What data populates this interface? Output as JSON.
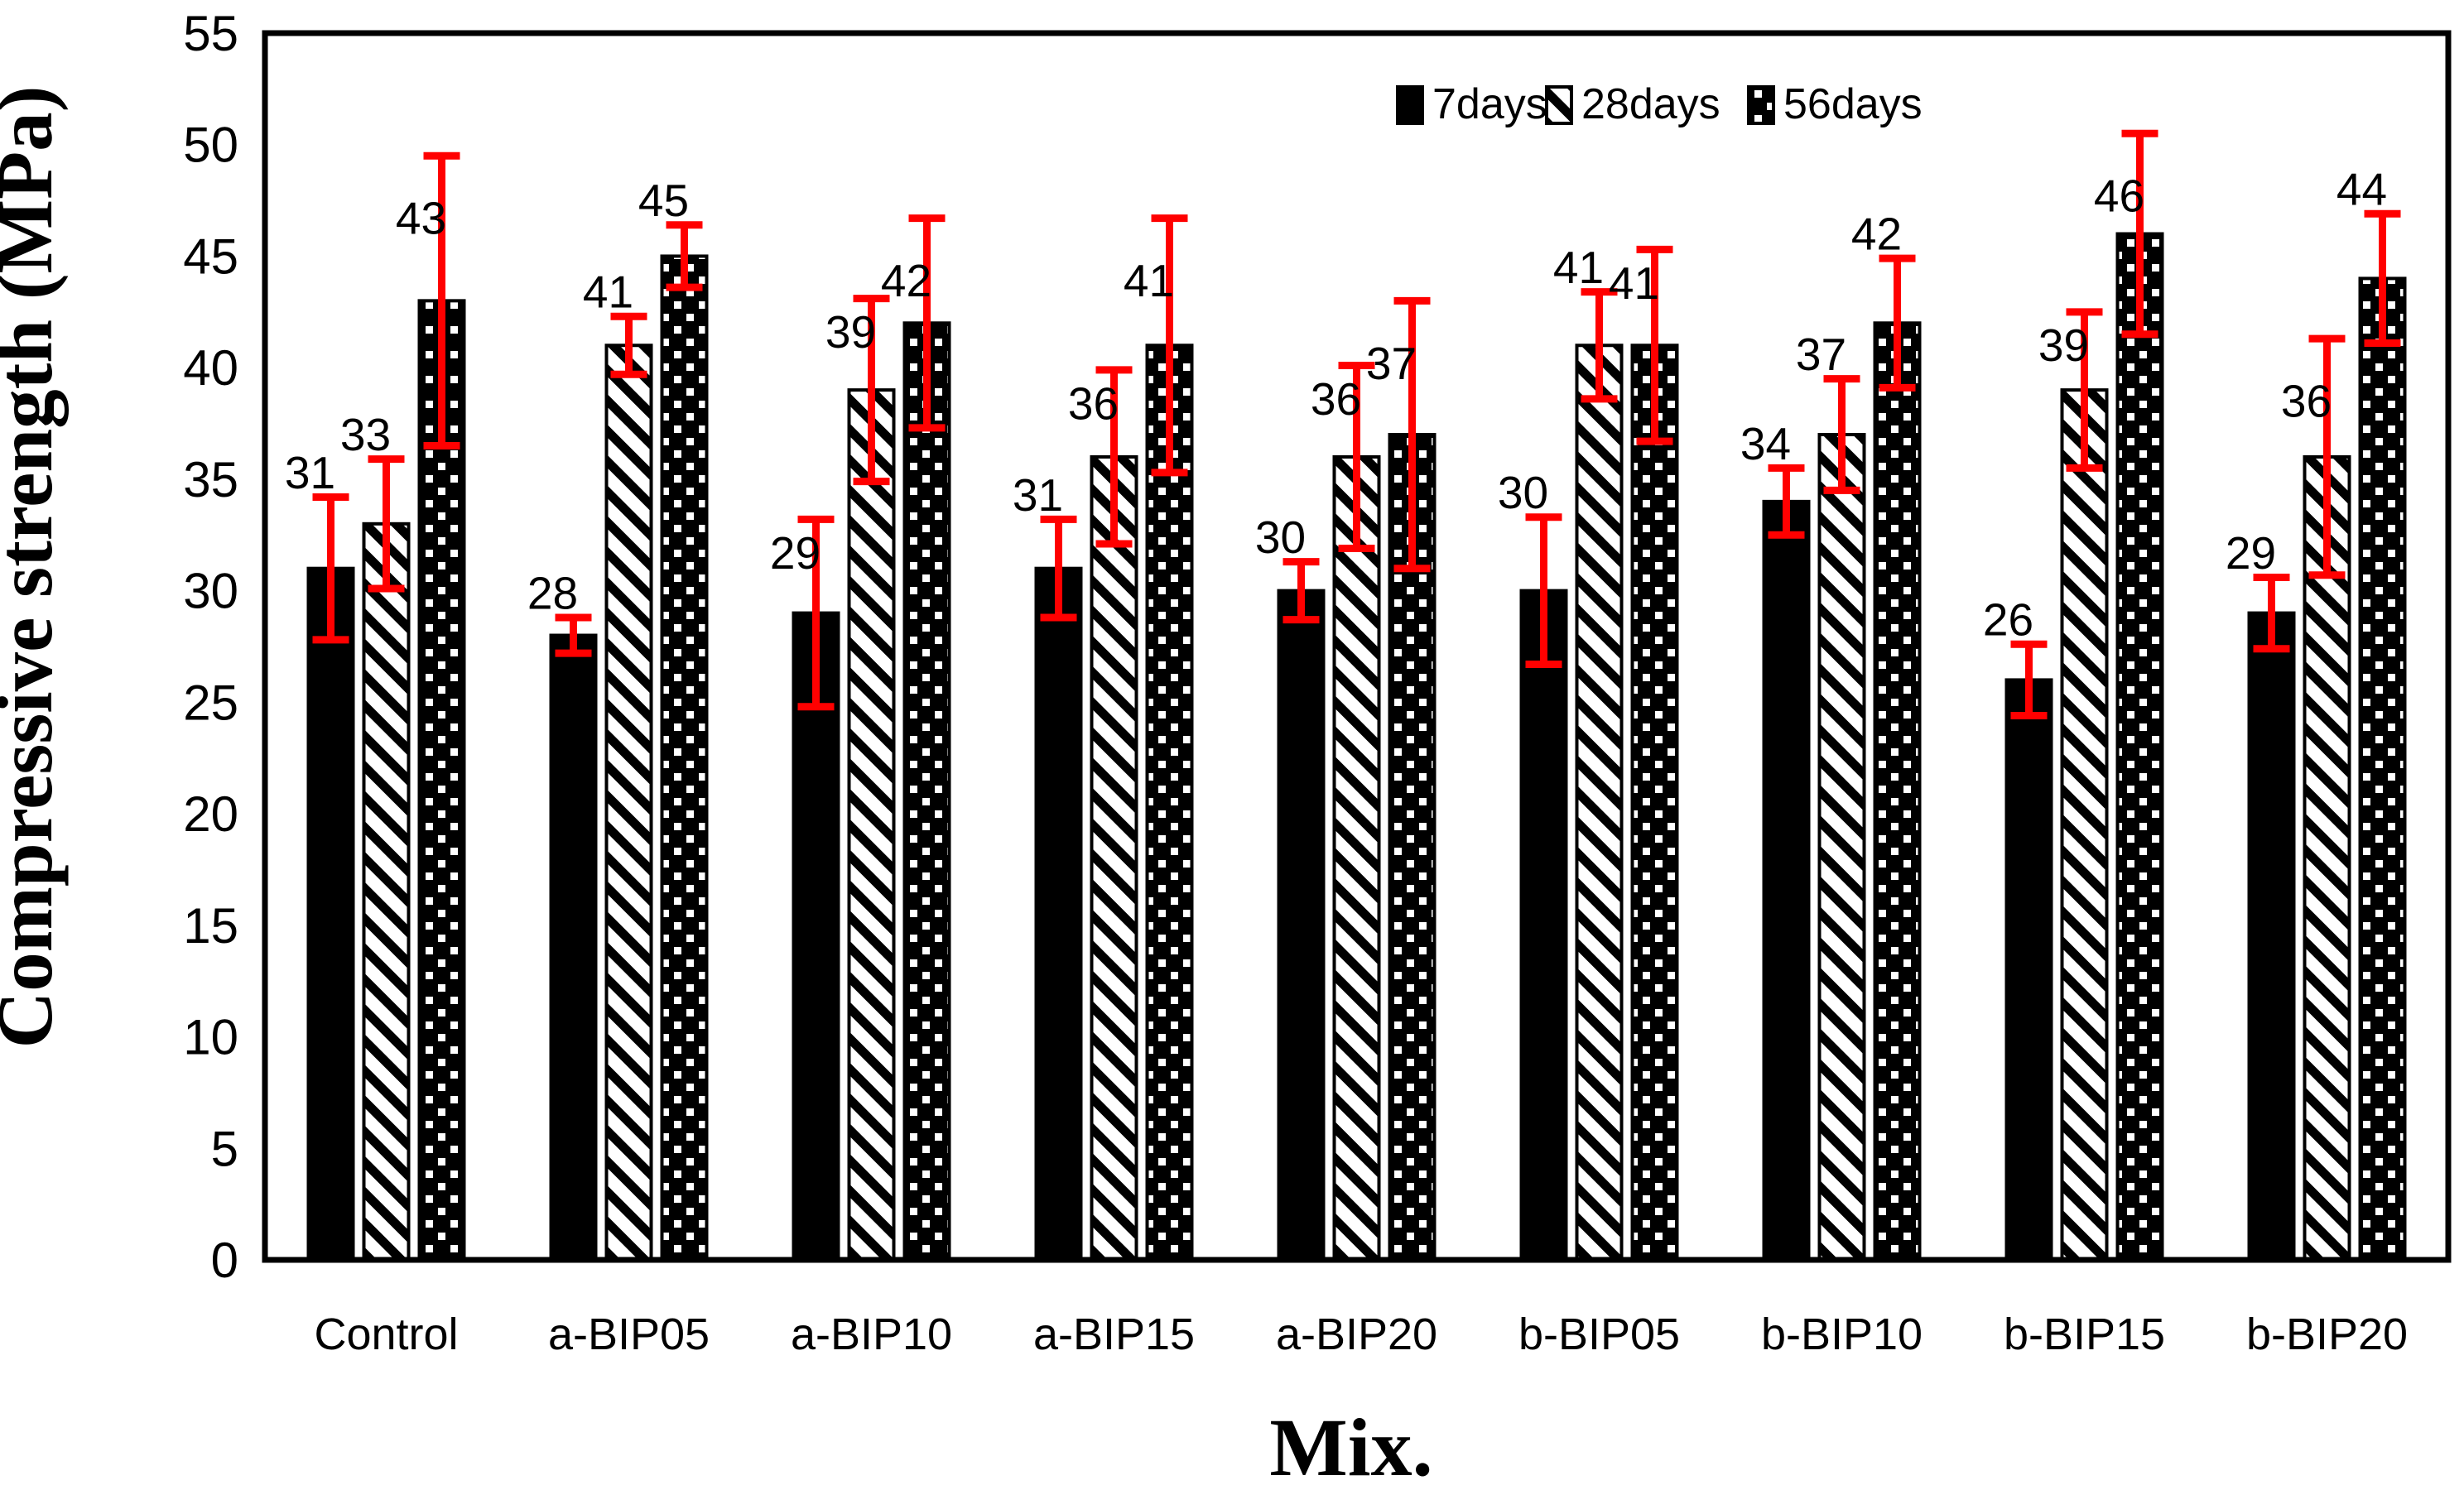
{
  "chart_data": {
    "type": "bar",
    "title": "",
    "xlabel": "Mix.",
    "ylabel": "Compressive strength (MPa)",
    "ylim": [
      0,
      55
    ],
    "yticks": [
      0,
      5,
      10,
      15,
      20,
      25,
      30,
      35,
      40,
      45,
      50,
      55
    ],
    "grid": false,
    "legend_position": "top-right-inside",
    "background": "#FFFFFF",
    "bar_color": "#000000",
    "error_bar_color": "#FF0000",
    "categories": [
      "Control",
      "a-BIP05",
      "a-BIP10",
      "a-BIP15",
      "a-BIP20",
      "b-BIP05",
      "b-BIP10",
      "b-BIP15",
      "b-BIP20"
    ],
    "series": [
      {
        "name": "7days",
        "pattern": "solid-black",
        "values": [
          31,
          28,
          29,
          31,
          30,
          30,
          34,
          26,
          29
        ],
        "err": [
          3.2,
          0.8,
          4.2,
          2.2,
          1.3,
          3.3,
          1.5,
          1.6,
          1.6
        ]
      },
      {
        "name": "28days",
        "pattern": "black-diagonal-hatch-on-white",
        "values": [
          33,
          41,
          39,
          36,
          36,
          41,
          37,
          39,
          36
        ],
        "err": [
          2.9,
          1.3,
          4.1,
          3.9,
          4.1,
          2.4,
          2.5,
          3.5,
          5.3
        ]
      },
      {
        "name": "56days",
        "pattern": "white-dots-on-black",
        "values": [
          43,
          45,
          42,
          41,
          37,
          41,
          42,
          46,
          44
        ],
        "err": [
          6.5,
          1.4,
          4.7,
          5.7,
          6.0,
          4.3,
          2.9,
          4.5,
          2.9
        ]
      }
    ],
    "data_labels": true
  }
}
